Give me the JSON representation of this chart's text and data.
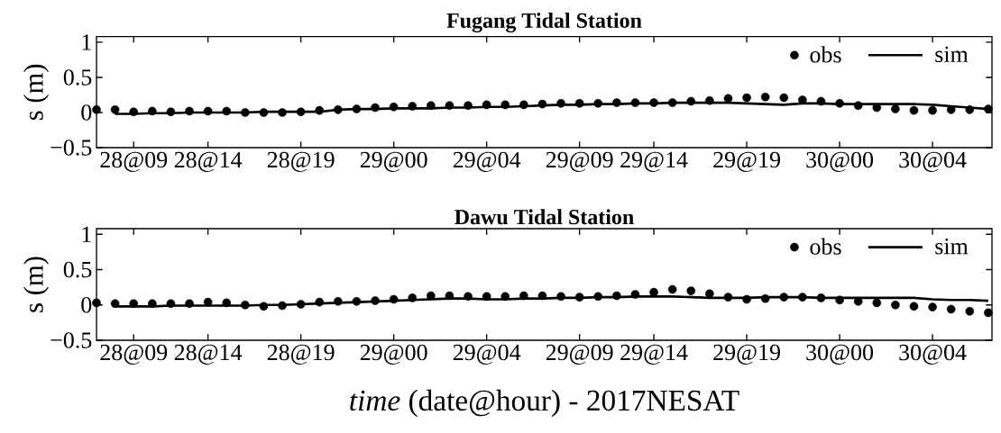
{
  "chart_data": [
    {
      "type": "line",
      "title": "**Fugang Tidal Station**",
      "ylabel": "s (m)",
      "categories": [
        null,
        null,
        "28@09",
        null,
        null,
        null,
        "28@14",
        null,
        null,
        null,
        null,
        "28@19",
        null,
        null,
        null,
        null,
        "29@00",
        null,
        null,
        null,
        null,
        "29@04",
        null,
        null,
        null,
        null,
        "29@09",
        null,
        null,
        null,
        "29@14",
        null,
        null,
        null,
        null,
        "29@19",
        null,
        null,
        null,
        null,
        "30@00",
        null,
        null,
        null,
        null,
        "30@04",
        null,
        null,
        null
      ],
      "series": [
        {
          "name": "obs",
          "type": "scatter",
          "color": "#000000",
          "marker": "circle",
          "values": [
            0.04,
            0.04,
            0.01,
            0.02,
            0.01,
            0.02,
            0.02,
            0.02,
            0.0,
            0.0,
            0.0,
            0.01,
            0.03,
            0.04,
            0.05,
            0.07,
            0.08,
            0.09,
            0.1,
            0.1,
            0.1,
            0.11,
            0.11,
            0.11,
            0.12,
            0.13,
            0.13,
            0.13,
            0.14,
            0.14,
            0.14,
            0.14,
            0.16,
            0.17,
            0.2,
            0.21,
            0.22,
            0.21,
            0.18,
            0.16,
            0.13,
            0.1,
            0.07,
            0.05,
            0.03,
            0.03,
            0.04,
            0.04,
            0.05
          ]
        },
        {
          "name": "sim",
          "color": "#000000",
          "marker": "none",
          "values": [
            null,
            -0.02,
            -0.02,
            -0.01,
            -0.01,
            0.0,
            0.0,
            0.0,
            0.0,
            0.01,
            0.01,
            0.01,
            0.01,
            0.04,
            0.05,
            0.05,
            0.06,
            0.06,
            0.06,
            0.07,
            0.07,
            0.08,
            0.08,
            0.09,
            0.1,
            0.11,
            0.11,
            0.12,
            0.12,
            0.13,
            0.13,
            0.14,
            0.14,
            0.14,
            0.14,
            0.13,
            0.12,
            0.11,
            0.13,
            0.13,
            0.12,
            0.12,
            0.12,
            0.12,
            0.12,
            0.11,
            0.09,
            0.07,
            0.05
          ]
        }
      ],
      "ylim": [
        -0.5,
        1.08
      ],
      "yticks": [
        {
          "value": -0.5,
          "label": "−0.5"
        },
        0,
        0.5,
        1
      ],
      "legend": "top right"
    },
    {
      "type": "line",
      "title": "**Dawu Tidal Station**",
      "ylabel": "s (m)",
      "xlabel": "*time* (date@hour) - 2017NESAT",
      "categories": [
        null,
        null,
        "28@09",
        null,
        null,
        null,
        "28@14",
        null,
        null,
        null,
        null,
        "28@19",
        null,
        null,
        null,
        null,
        "29@00",
        null,
        null,
        null,
        null,
        "29@04",
        null,
        null,
        null,
        null,
        "29@09",
        null,
        null,
        null,
        "29@14",
        null,
        null,
        null,
        null,
        "29@19",
        null,
        null,
        null,
        null,
        "30@00",
        null,
        null,
        null,
        null,
        "30@04",
        null,
        null,
        null
      ],
      "series": [
        {
          "name": "obs",
          "type": "scatter",
          "color": "#000000",
          "marker": "circle",
          "values": [
            0.03,
            0.02,
            0.02,
            0.02,
            0.02,
            0.02,
            0.04,
            0.03,
            0.0,
            -0.02,
            -0.01,
            0.01,
            0.04,
            0.05,
            0.05,
            0.06,
            0.08,
            0.1,
            0.13,
            0.13,
            0.12,
            0.12,
            0.12,
            0.13,
            0.13,
            0.12,
            0.11,
            0.12,
            0.13,
            0.15,
            0.18,
            0.22,
            0.2,
            0.16,
            0.11,
            0.08,
            0.09,
            0.11,
            0.11,
            0.1,
            0.07,
            0.05,
            0.03,
            0.0,
            -0.02,
            -0.03,
            -0.06,
            -0.09,
            -0.11
          ]
        },
        {
          "name": "sim",
          "color": "#000000",
          "marker": "none",
          "values": [
            null,
            -0.02,
            -0.02,
            -0.02,
            -0.01,
            -0.01,
            -0.01,
            -0.01,
            -0.01,
            0.0,
            0.0,
            0.01,
            0.02,
            0.03,
            0.04,
            0.05,
            0.06,
            0.07,
            0.08,
            0.09,
            0.09,
            0.08,
            0.08,
            0.09,
            0.09,
            0.1,
            0.1,
            0.11,
            0.11,
            0.12,
            0.12,
            0.12,
            0.11,
            0.1,
            0.1,
            0.1,
            0.11,
            0.11,
            0.11,
            0.1,
            0.1,
            0.1,
            0.1,
            0.1,
            0.1,
            0.08,
            0.07,
            0.07,
            0.06
          ]
        }
      ],
      "ylim": [
        -0.5,
        1.08
      ],
      "yticks": [
        {
          "value": -0.5,
          "label": "−0.5"
        },
        0,
        0.5,
        1
      ],
      "legend": "top right"
    }
  ]
}
